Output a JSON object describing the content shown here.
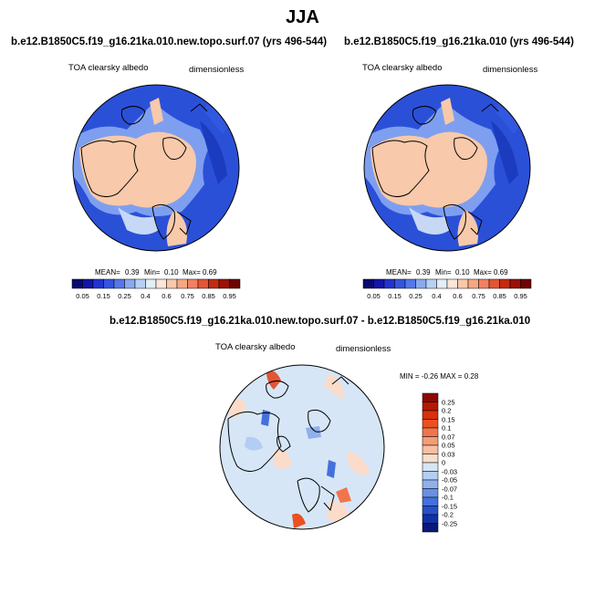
{
  "season_title": "JJA",
  "panels": [
    {
      "title": "b.e12.B1850C5.f19_g16.21ka.010.new.topo.surf.07 (yrs 496-544)",
      "left_label": "TOA clearsky albedo",
      "right_label": "dimensionless",
      "stats": {
        "mean_label": "MEAN=",
        "mean": "0.39",
        "min_label": "Min=",
        "min": "0.10",
        "max_label": "Max=",
        "max": "0.69"
      }
    },
    {
      "title": "b.e12.B1850C5.f19_g16.21ka.010 (yrs 496-544)",
      "left_label": "TOA clearsky albedo",
      "right_label": "dimensionless",
      "stats": {
        "mean_label": "MEAN=",
        "mean": "0.39",
        "min_label": "Min=",
        "min": "0.10",
        "max_label": "Max=",
        "max": "0.69"
      }
    }
  ],
  "abs_colorbar": {
    "labels": [
      "0.05",
      "0.15",
      "0.25",
      "0.4",
      "0.6",
      "0.75",
      "0.85",
      "0.95"
    ],
    "colors": [
      "#0a0a6e",
      "#1414a8",
      "#2233d0",
      "#3355e0",
      "#5577ea",
      "#88aaf0",
      "#b8d0f5",
      "#e2eef8",
      "#fbe6d8",
      "#f8c9aa",
      "#f5a882",
      "#f28060",
      "#e25535",
      "#c42a12",
      "#9c1005",
      "#6e0300"
    ]
  },
  "diff_panel": {
    "title": "b.e12.B1850C5.f19_g16.21ka.010.new.topo.surf.07 - b.e12.B1850C5.f19_g16.21ka.010",
    "left_label": "TOA clearsky albedo",
    "right_label": "dimensionless",
    "minmax": "MIN =  -0.26 MAX =   0.28"
  },
  "diff_colorbar": {
    "labels": [
      "0.25",
      "0.2",
      "0.15",
      "0.1",
      "0.07",
      "0.05",
      "0.03",
      "0",
      "-0.03",
      "-0.05",
      "-0.07",
      "-0.1",
      "-0.15",
      "-0.2",
      "-0.25"
    ],
    "colors": [
      "#8c0a02",
      "#b51805",
      "#d8300c",
      "#eb5020",
      "#f2744a",
      "#f49c78",
      "#f8bfa2",
      "#fbdcca",
      "#d6e6f7",
      "#b4cdf2",
      "#8fb0ec",
      "#6a90e6",
      "#4470dc",
      "#2450c8",
      "#1030a8",
      "#0a1878"
    ]
  }
}
